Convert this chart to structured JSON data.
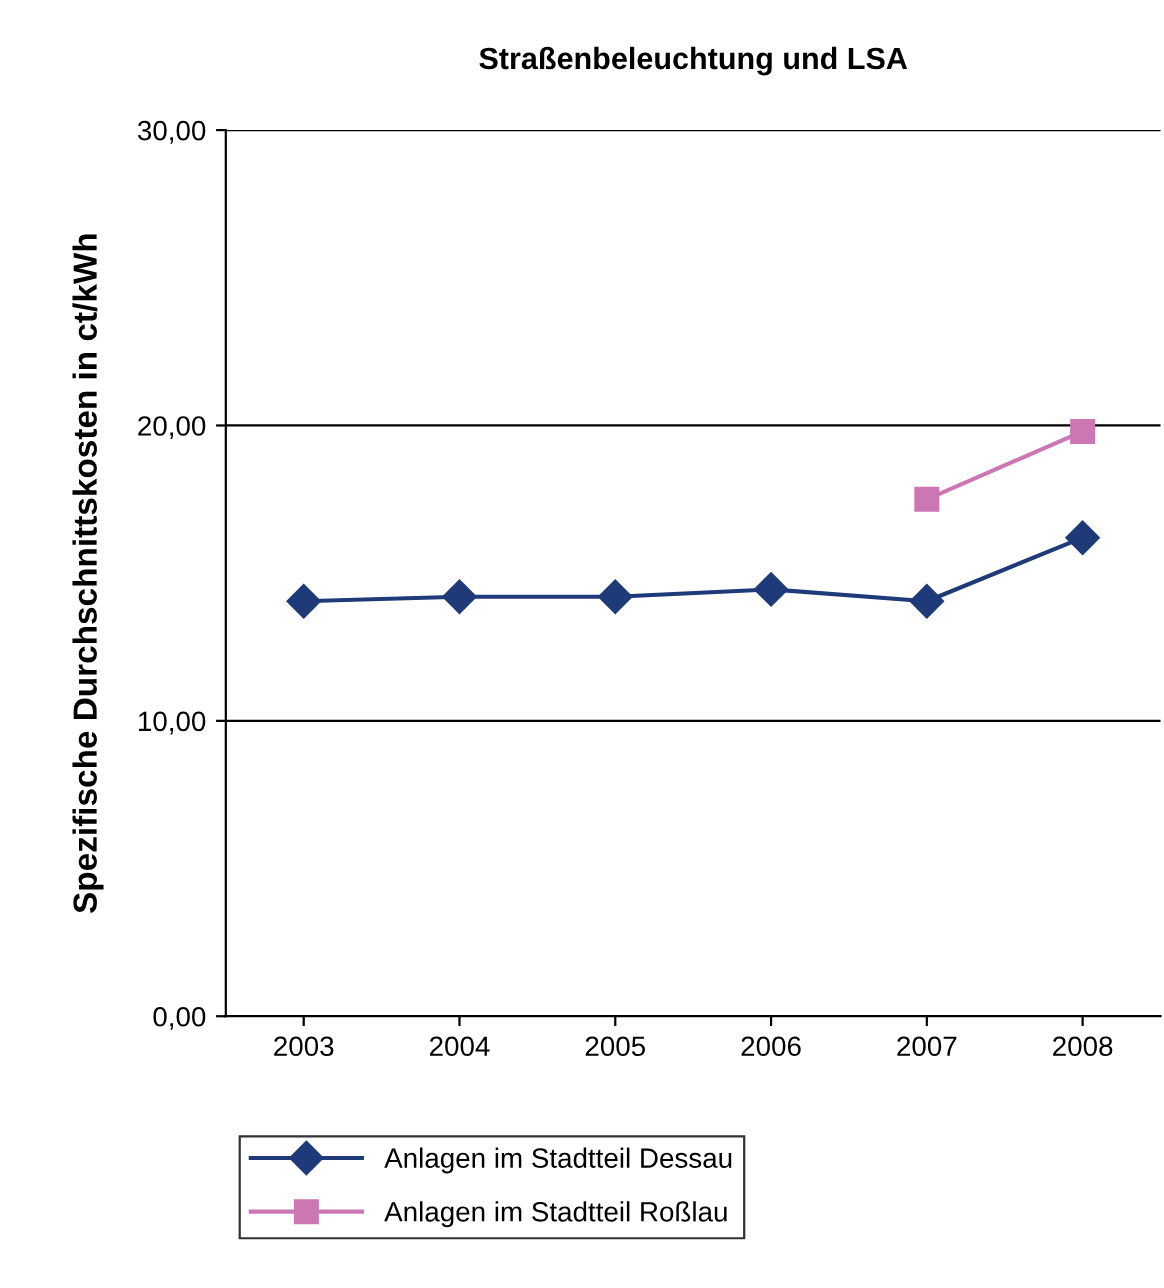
{
  "chart_data": {
    "type": "line",
    "title": "Straßenbeleuchtung und LSA",
    "ylabel": "Spezifische Durchschnittskosten in ct/kWh",
    "categories": [
      "2003",
      "2004",
      "2005",
      "2006",
      "2007",
      "2008"
    ],
    "series": [
      {
        "name": "Anlagen im Stadtteil Dessau",
        "color": "#1f3a78",
        "marker": "diamond",
        "values": [
          14.05,
          14.2,
          14.2,
          14.45,
          14.05,
          16.2
        ]
      },
      {
        "name": "Anlagen im Stadtteil Roßlau",
        "color": "#cc77b4",
        "marker": "square",
        "values": [
          null,
          null,
          null,
          null,
          17.5,
          19.8
        ]
      }
    ],
    "ylim": [
      0,
      30
    ],
    "yticks": [
      {
        "value": 0,
        "label": "0,00"
      },
      {
        "value": 10,
        "label": "10,00"
      },
      {
        "value": 20,
        "label": "20,00"
      },
      {
        "value": 30,
        "label": "30,00"
      }
    ],
    "grid": "y",
    "legend": "bottom left"
  }
}
